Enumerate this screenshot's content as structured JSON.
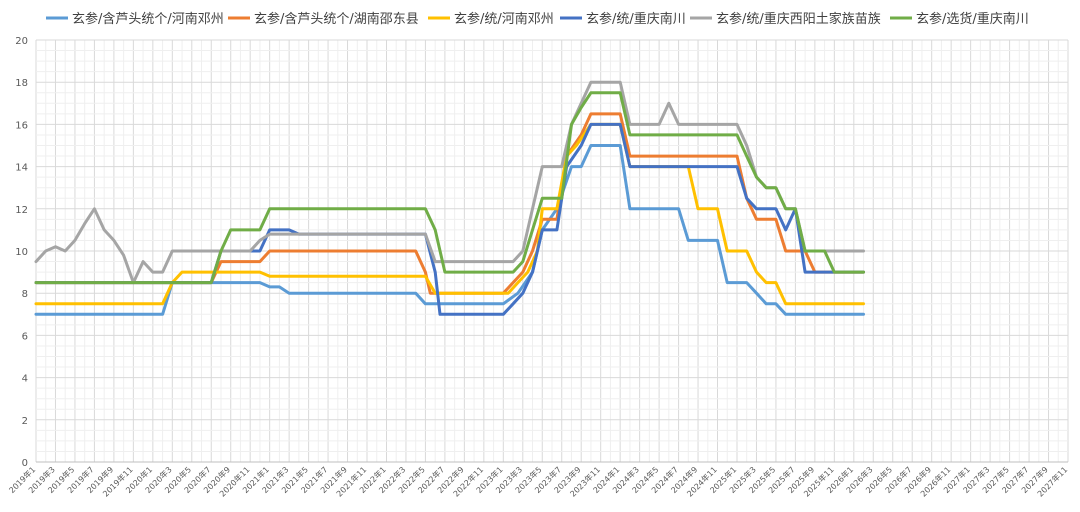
{
  "chart_data": {
    "type": "line",
    "title": "",
    "xlabel": "",
    "ylabel": "",
    "ylim": [
      0,
      20
    ],
    "yticks": [
      0,
      2,
      4,
      6,
      8,
      10,
      12,
      14,
      16,
      18,
      20
    ],
    "grid": true,
    "legend_position": "top",
    "x_tick_labels": [
      "2019年1",
      "2019年3",
      "2019年5",
      "2019年7",
      "2019年9",
      "2019年11",
      "2020年1",
      "2020年3",
      "2020年5",
      "2020年7",
      "2020年9",
      "2020年11",
      "2021年1",
      "2021年3",
      "2021年5",
      "2021年7",
      "2021年9",
      "2021年11",
      "2022年1",
      "2022年3",
      "2022年5",
      "2022年7",
      "2022年9",
      "2022年11",
      "2023年1",
      "2023年3",
      "2023年5",
      "2023年7",
      "2023年9",
      "2023年11",
      "2024年1",
      "2024年3",
      "2024年5",
      "2024年7",
      "2024年9",
      "2024年11",
      "2025年1",
      "2025年3",
      "2025年5",
      "2025年7",
      "2025年9",
      "2025年11",
      "2026年1",
      "2026年3",
      "2026年5",
      "2026年7",
      "2026年9",
      "2026年11",
      "2027年1",
      "2027年3",
      "2027年5",
      "2027年7",
      "2027年9",
      "2027年11"
    ],
    "series": [
      {
        "name": "玄参/含芦头统个/河南邓州",
        "color": "#5B9BD5",
        "points": [
          [
            0,
            7
          ],
          [
            26,
            7
          ],
          [
            28,
            8.5
          ],
          [
            46,
            8.5
          ],
          [
            48,
            8.3
          ],
          [
            50,
            8.3
          ],
          [
            52,
            8
          ],
          [
            78,
            8
          ],
          [
            80,
            7.5
          ],
          [
            96,
            7.5
          ],
          [
            99,
            8
          ],
          [
            102,
            9
          ],
          [
            104,
            11
          ],
          [
            107,
            12
          ],
          [
            110,
            14
          ],
          [
            112,
            14
          ],
          [
            114,
            15
          ],
          [
            120,
            15
          ],
          [
            122,
            12
          ],
          [
            132,
            12
          ],
          [
            134,
            10.5
          ],
          [
            140,
            10.5
          ],
          [
            142,
            8.5
          ],
          [
            146,
            8.5
          ],
          [
            148,
            8
          ],
          [
            150,
            7.5
          ],
          [
            152,
            7.5
          ],
          [
            154,
            7
          ],
          [
            170,
            7
          ]
        ]
      },
      {
        "name": "玄参/含芦头统个/湖南邵东县",
        "color": "#ED7D31",
        "points": [
          [
            0,
            8.5
          ],
          [
            36,
            8.5
          ],
          [
            38,
            9.5
          ],
          [
            46,
            9.5
          ],
          [
            48,
            10
          ],
          [
            78,
            10
          ],
          [
            80,
            9
          ],
          [
            81,
            8
          ],
          [
            96,
            8
          ],
          [
            98,
            8.5
          ],
          [
            100,
            9
          ],
          [
            102,
            10
          ],
          [
            104,
            11.5
          ],
          [
            107,
            11.5
          ],
          [
            109,
            14.5
          ],
          [
            112,
            15.5
          ],
          [
            114,
            16.5
          ],
          [
            120,
            16.5
          ],
          [
            122,
            14.5
          ],
          [
            144,
            14.5
          ],
          [
            146,
            12.5
          ],
          [
            148,
            11.5
          ],
          [
            152,
            11.5
          ],
          [
            154,
            10
          ],
          [
            158,
            10
          ],
          [
            160,
            9
          ],
          [
            170,
            9
          ]
        ]
      },
      {
        "name": "玄参/统/河南邓州",
        "color": "#FFC000",
        "points": [
          [
            0,
            7.5
          ],
          [
            26,
            7.5
          ],
          [
            28,
            8.5
          ],
          [
            30,
            9
          ],
          [
            46,
            9
          ],
          [
            48,
            8.8
          ],
          [
            80,
            8.8
          ],
          [
            82,
            8
          ],
          [
            97,
            8
          ],
          [
            99,
            8.5
          ],
          [
            101,
            9
          ],
          [
            103,
            10
          ],
          [
            104,
            12
          ],
          [
            107,
            12
          ],
          [
            109,
            14.5
          ],
          [
            111,
            15
          ],
          [
            114,
            16
          ],
          [
            120,
            16
          ],
          [
            122,
            14
          ],
          [
            134,
            14
          ],
          [
            136,
            12
          ],
          [
            140,
            12
          ],
          [
            142,
            10
          ],
          [
            146,
            10
          ],
          [
            148,
            9
          ],
          [
            150,
            8.5
          ],
          [
            152,
            8.5
          ],
          [
            154,
            7.5
          ],
          [
            170,
            7.5
          ]
        ]
      },
      {
        "name": "玄参/统/重庆南川",
        "color": "#4472C4",
        "points": [
          [
            0,
            8.5
          ],
          [
            26,
            8.5
          ],
          [
            28,
            8.5
          ],
          [
            36,
            8.5
          ],
          [
            38,
            10
          ],
          [
            46,
            10
          ],
          [
            48,
            11
          ],
          [
            52,
            11
          ],
          [
            54,
            10.8
          ],
          [
            80,
            10.8
          ],
          [
            82,
            9
          ],
          [
            83,
            7
          ],
          [
            96,
            7
          ],
          [
            98,
            7.5
          ],
          [
            100,
            8
          ],
          [
            102,
            9
          ],
          [
            104,
            11
          ],
          [
            107,
            11
          ],
          [
            109,
            14
          ],
          [
            112,
            15
          ],
          [
            114,
            16
          ],
          [
            120,
            16
          ],
          [
            122,
            14
          ],
          [
            144,
            14
          ],
          [
            146,
            12.5
          ],
          [
            148,
            12
          ],
          [
            152,
            12
          ],
          [
            154,
            11
          ],
          [
            156,
            12
          ],
          [
            158,
            9
          ],
          [
            170,
            9
          ]
        ]
      },
      {
        "name": "玄参/统/重庆西阳土家族苗族",
        "color": "#A5A5A5",
        "points": [
          [
            0,
            9.5
          ],
          [
            2,
            10
          ],
          [
            4,
            10.2
          ],
          [
            6,
            10
          ],
          [
            8,
            10.5
          ],
          [
            10,
            11.3
          ],
          [
            12,
            12
          ],
          [
            14,
            11
          ],
          [
            16,
            10.5
          ],
          [
            18,
            9.8
          ],
          [
            20,
            8.5
          ],
          [
            22,
            9.5
          ],
          [
            24,
            9
          ],
          [
            26,
            9
          ],
          [
            28,
            10
          ],
          [
            30,
            10
          ],
          [
            36,
            10
          ],
          [
            44,
            10
          ],
          [
            46,
            10.5
          ],
          [
            48,
            10.8
          ],
          [
            52,
            10.8
          ],
          [
            80,
            10.8
          ],
          [
            82,
            9.5
          ],
          [
            98,
            9.5
          ],
          [
            100,
            10
          ],
          [
            102,
            12
          ],
          [
            104,
            14
          ],
          [
            108,
            14
          ],
          [
            110,
            16
          ],
          [
            112,
            17
          ],
          [
            114,
            18
          ],
          [
            120,
            18
          ],
          [
            122,
            16
          ],
          [
            128,
            16
          ],
          [
            130,
            17
          ],
          [
            132,
            16
          ],
          [
            144,
            16
          ],
          [
            146,
            15
          ],
          [
            148,
            13.5
          ],
          [
            150,
            13
          ],
          [
            152,
            13
          ],
          [
            154,
            12
          ],
          [
            156,
            12
          ],
          [
            158,
            10
          ],
          [
            170,
            10
          ]
        ]
      },
      {
        "name": "玄参/选货/重庆南川",
        "color": "#70AD47",
        "points": [
          [
            0,
            8.5
          ],
          [
            26,
            8.5
          ],
          [
            28,
            8.5
          ],
          [
            36,
            8.5
          ],
          [
            38,
            10
          ],
          [
            40,
            11
          ],
          [
            46,
            11
          ],
          [
            48,
            12
          ],
          [
            80,
            12
          ],
          [
            82,
            11
          ],
          [
            84,
            9
          ],
          [
            98,
            9
          ],
          [
            100,
            9.5
          ],
          [
            102,
            11
          ],
          [
            104,
            12.5
          ],
          [
            108,
            12.5
          ],
          [
            110,
            16
          ],
          [
            112,
            16.8
          ],
          [
            114,
            17.5
          ],
          [
            120,
            17.5
          ],
          [
            122,
            15.5
          ],
          [
            144,
            15.5
          ],
          [
            146,
            14.5
          ],
          [
            148,
            13.5
          ],
          [
            150,
            13
          ],
          [
            152,
            13
          ],
          [
            154,
            12
          ],
          [
            156,
            12
          ],
          [
            158,
            10
          ],
          [
            162,
            10
          ],
          [
            164,
            9
          ],
          [
            170,
            9
          ]
        ]
      }
    ]
  }
}
